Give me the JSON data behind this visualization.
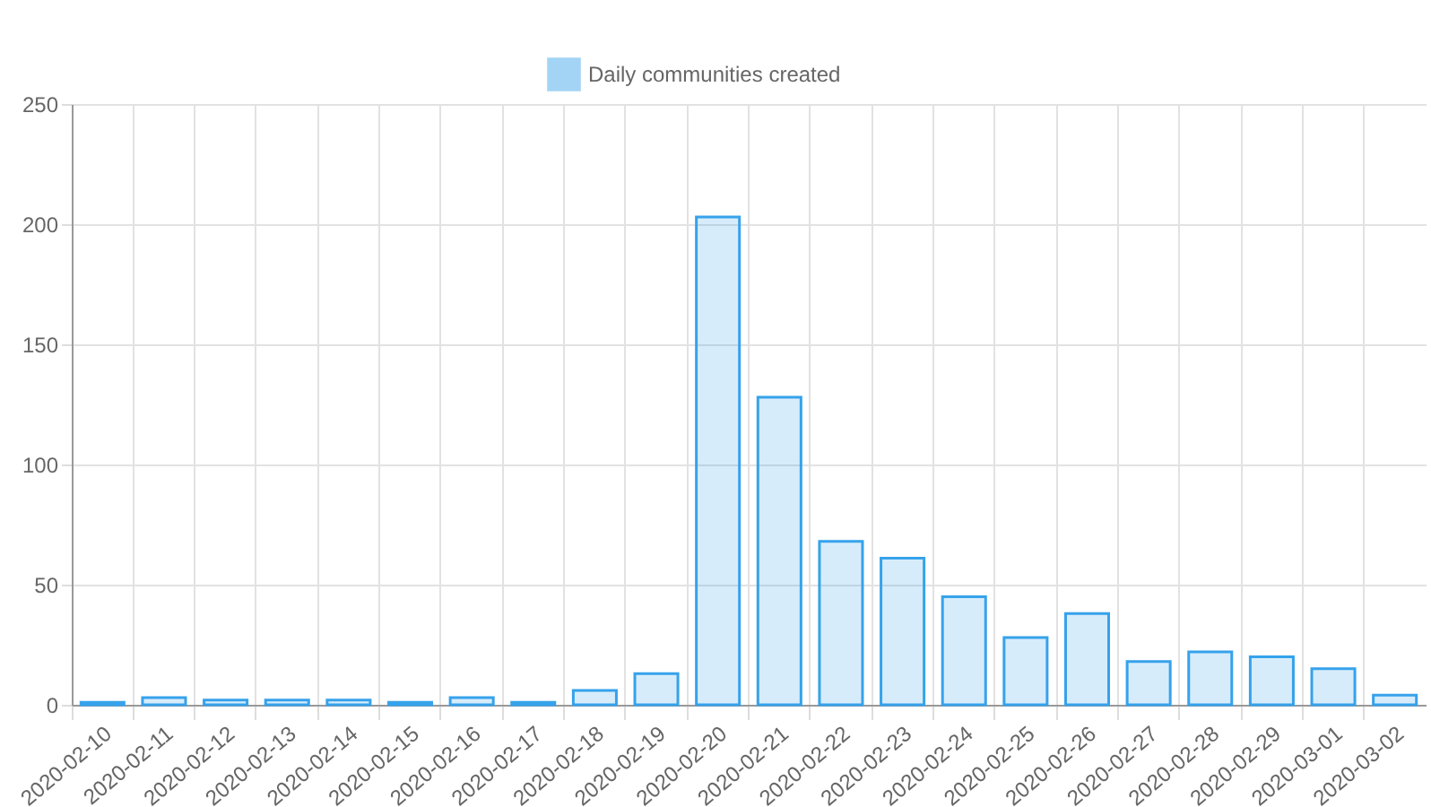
{
  "chart_data": {
    "type": "bar",
    "categories": [
      "2020-02-10",
      "2020-02-11",
      "2020-02-12",
      "2020-02-13",
      "2020-02-14",
      "2020-02-15",
      "2020-02-16",
      "2020-02-17",
      "2020-02-18",
      "2020-02-19",
      "2020-02-20",
      "2020-02-21",
      "2020-02-22",
      "2020-02-23",
      "2020-02-24",
      "2020-02-25",
      "2020-02-26",
      "2020-02-27",
      "2020-02-28",
      "2020-02-29",
      "2020-03-01",
      "2020-03-02"
    ],
    "series": [
      {
        "name": "Daily communities created",
        "color": "#36a2eb",
        "values": [
          1,
          3,
          2,
          2,
          2,
          1,
          3,
          1,
          6,
          13,
          203,
          128,
          68,
          61,
          45,
          28,
          38,
          18,
          22,
          20,
          15,
          4
        ]
      }
    ],
    "ylim": [
      0,
      250
    ],
    "yticks": [
      0,
      50,
      100,
      150,
      200,
      250
    ],
    "grid": true,
    "legend": "top"
  }
}
